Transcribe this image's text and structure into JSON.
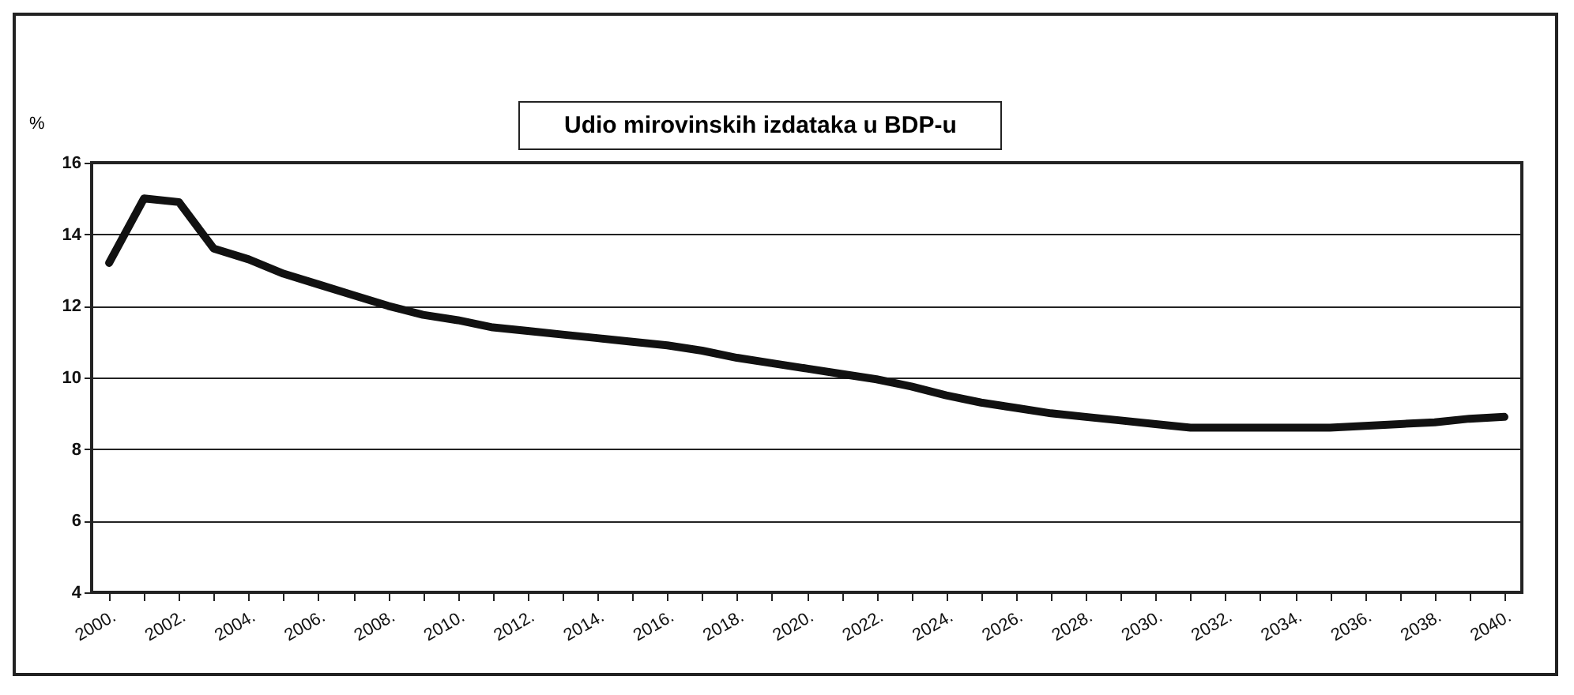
{
  "chart_data": {
    "type": "line",
    "title": "Udio mirovinskih izdataka u BDP-u",
    "ylabel": "%",
    "categories": [
      "2000.",
      null,
      "2002.",
      null,
      "2004.",
      null,
      "2006.",
      null,
      "2008.",
      null,
      "2010.",
      null,
      "2012.",
      null,
      "2014.",
      null,
      "2016.",
      null,
      "2018.",
      null,
      "2020.",
      null,
      "2022.",
      null,
      "2024.",
      null,
      "2026.",
      null,
      "2028.",
      null,
      "2030.",
      null,
      "2032.",
      null,
      "2034.",
      null,
      "2036.",
      null,
      "2038.",
      null,
      "2040."
    ],
    "series": [
      {
        "color": "#111111",
        "values": [
          13.2,
          15.0,
          14.9,
          13.6,
          13.3,
          12.9,
          12.6,
          12.3,
          12.0,
          11.75,
          11.6,
          11.4,
          11.3,
          11.2,
          11.1,
          11.0,
          10.9,
          10.75,
          10.55,
          10.4,
          10.25,
          10.1,
          9.95,
          9.75,
          9.5,
          9.3,
          9.15,
          9.0,
          8.9,
          8.8,
          8.7,
          8.6,
          8.6,
          8.6,
          8.6,
          8.6,
          8.65,
          8.7,
          8.75,
          8.85,
          8.9
        ]
      }
    ],
    "ylim": [
      4,
      16
    ],
    "yticks": [
      4,
      6,
      8,
      10,
      12,
      14,
      16
    ],
    "grid": "y",
    "legend": false,
    "marker": "none",
    "line_style": "solid"
  }
}
